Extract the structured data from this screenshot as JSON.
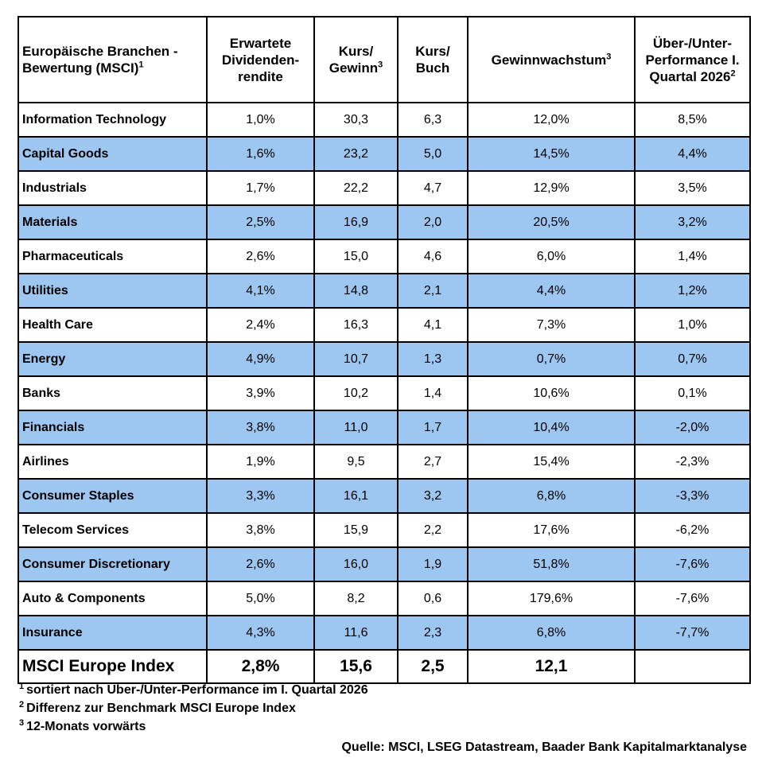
{
  "header": {
    "col0": {
      "text": "Europäische Branchen - Bewertung (MSCI)",
      "sup": "1"
    },
    "col1": {
      "text": "Erwartete Dividenden-rendite"
    },
    "col2": {
      "text": "Kurs/ Gewinn",
      "sup": "3"
    },
    "col3": {
      "text": "Kurs/ Buch"
    },
    "col4": {
      "text": "Gewinnwachstum",
      "sup": "3"
    },
    "col5": {
      "text": "Über-/Unter-Performance I. Quartal 2026",
      "sup": "2"
    }
  },
  "rows": [
    {
      "name": "Information Technology",
      "div": "1,0%",
      "kg": "30,3",
      "kb": "6,3",
      "gw": "12,0%",
      "perf": "8,5%"
    },
    {
      "name": "Capital Goods",
      "div": "1,6%",
      "kg": "23,2",
      "kb": "5,0",
      "gw": "14,5%",
      "perf": "4,4%"
    },
    {
      "name": "Industrials",
      "div": "1,7%",
      "kg": "22,2",
      "kb": "4,7",
      "gw": "12,9%",
      "perf": "3,5%"
    },
    {
      "name": "Materials",
      "div": "2,5%",
      "kg": "16,9",
      "kb": "2,0",
      "gw": "20,5%",
      "perf": "3,2%"
    },
    {
      "name": "Pharmaceuticals",
      "div": "2,6%",
      "kg": "15,0",
      "kb": "4,6",
      "gw": "6,0%",
      "perf": "1,4%"
    },
    {
      "name": "Utilities",
      "div": "4,1%",
      "kg": "14,8",
      "kb": "2,1",
      "gw": "4,4%",
      "perf": "1,2%"
    },
    {
      "name": "Health Care",
      "div": "2,4%",
      "kg": "16,3",
      "kb": "4,1",
      "gw": "7,3%",
      "perf": "1,0%"
    },
    {
      "name": "Energy",
      "div": "4,9%",
      "kg": "10,7",
      "kb": "1,3",
      "gw": "0,7%",
      "perf": "0,7%"
    },
    {
      "name": "Banks",
      "div": "3,9%",
      "kg": "10,2",
      "kb": "1,4",
      "gw": "10,6%",
      "perf": "0,1%"
    },
    {
      "name": "Financials",
      "div": "3,8%",
      "kg": "11,0",
      "kb": "1,7",
      "gw": "10,4%",
      "perf": "-2,0%"
    },
    {
      "name": "Airlines",
      "div": "1,9%",
      "kg": "9,5",
      "kb": "2,7",
      "gw": "15,4%",
      "perf": "-2,3%"
    },
    {
      "name": "Consumer Staples",
      "div": "3,3%",
      "kg": "16,1",
      "kb": "3,2",
      "gw": "6,8%",
      "perf": "-3,3%"
    },
    {
      "name": "Telecom Services",
      "div": "3,8%",
      "kg": "15,9",
      "kb": "2,2",
      "gw": "17,6%",
      "perf": "-6,2%"
    },
    {
      "name": "Consumer Discretionary",
      "div": "2,6%",
      "kg": "16,0",
      "kb": "1,9",
      "gw": "51,8%",
      "perf": "-7,6%"
    },
    {
      "name": "Auto & Components",
      "div": "5,0%",
      "kg": "8,2",
      "kb": "0,6",
      "gw": "179,6%",
      "perf": "-7,6%"
    },
    {
      "name": "Insurance",
      "div": "4,3%",
      "kg": "11,6",
      "kb": "2,3",
      "gw": "6,8%",
      "perf": "-7,7%"
    }
  ],
  "total": {
    "name": "MSCI Europe Index",
    "div": "2,8%",
    "kg": "15,6",
    "kb": "2,5",
    "gw": "12,1",
    "perf": ""
  },
  "footnotes": [
    {
      "mark": "1",
      "text": "sortiert nach Über-/Unter-Performance im I. Quartal 2026"
    },
    {
      "mark": "2",
      "text": "Differenz zur Benchmark MSCI Europe Index"
    },
    {
      "mark": "3",
      "text": "12-Monats vorwärts"
    }
  ],
  "source": "Quelle: MSCI, LSEG Datastream, Baader Bank Kapitalmarktanalyse",
  "colors": {
    "band": "#9dc6f0",
    "border": "#000000"
  }
}
